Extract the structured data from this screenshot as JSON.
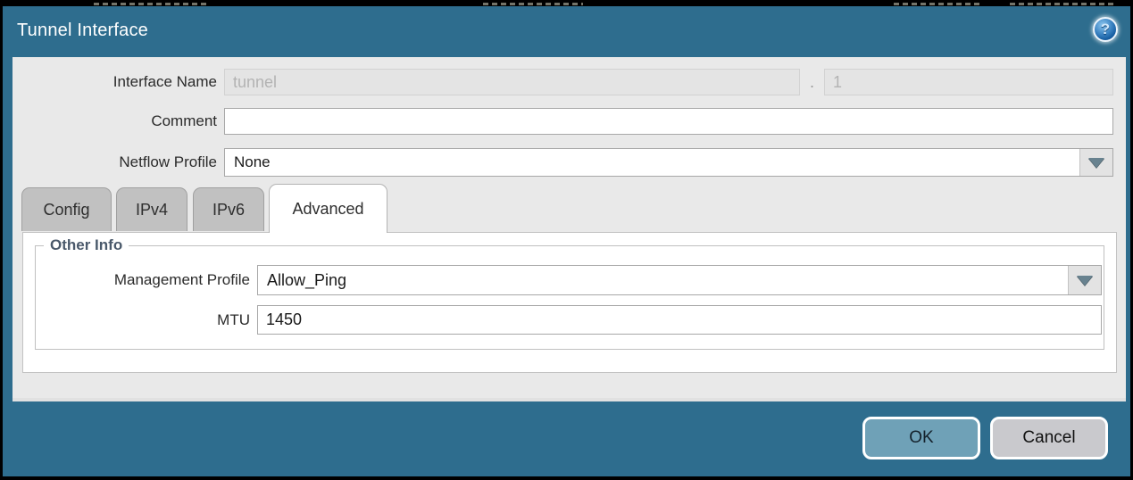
{
  "dialog": {
    "title": "Tunnel Interface",
    "help_glyph": "?",
    "fields": {
      "interface_name": {
        "label": "Interface Name",
        "value": "tunnel",
        "separator": ".",
        "suffix_value": "1"
      },
      "comment": {
        "label": "Comment",
        "value": ""
      },
      "netflow_profile": {
        "label": "Netflow Profile",
        "value": "None"
      }
    },
    "tabs": [
      {
        "label": "Config",
        "active": false
      },
      {
        "label": "IPv4",
        "active": false
      },
      {
        "label": "IPv6",
        "active": false
      },
      {
        "label": "Advanced",
        "active": true
      }
    ],
    "advanced_tab": {
      "group_title": "Other Info",
      "management_profile": {
        "label": "Management Profile",
        "value": "Allow_Ping"
      },
      "mtu": {
        "label": "MTU",
        "value": "1450"
      }
    },
    "buttons": {
      "ok": "OK",
      "cancel": "Cancel"
    },
    "colors": {
      "teal_background": "#2e6d8e",
      "ok_button": "#6fa1b7",
      "cancel_button": "#c9c9cd",
      "legend_accent": "#4a596b",
      "help_icon_blue": "#135a9e"
    }
  }
}
